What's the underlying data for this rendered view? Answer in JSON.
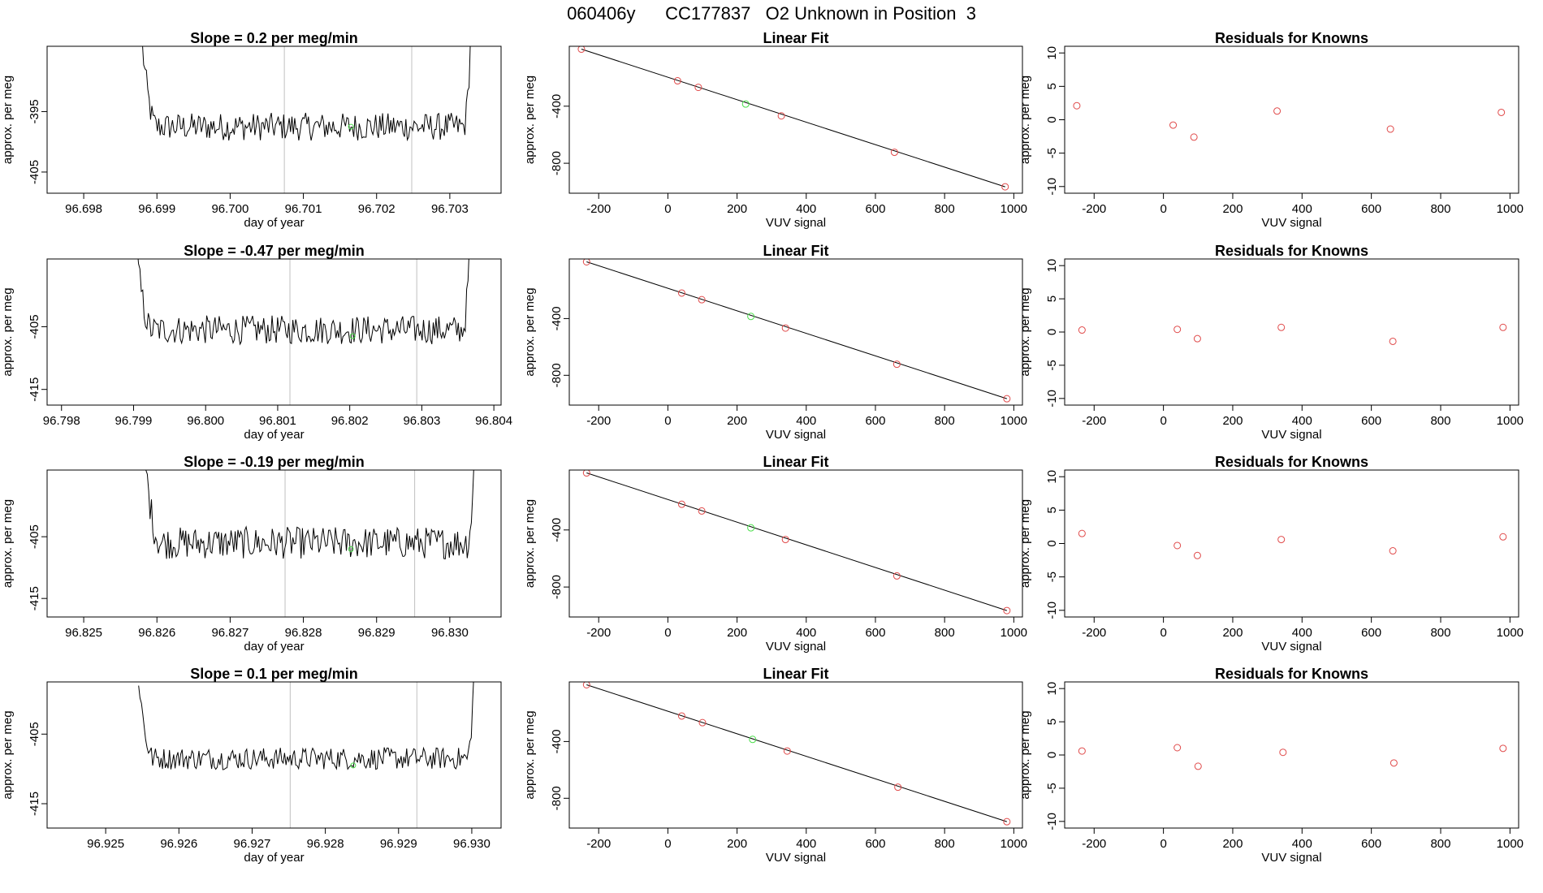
{
  "page": {
    "title": "060406y      CC177837   O2 Unknown in Position  3"
  },
  "colors": {
    "trace": "#000000",
    "vline": "#c0c0c0",
    "known": "#e04a4a",
    "unknown": "#4ade4a",
    "axis": "#000000"
  },
  "chart_data": [
    {
      "type": "line",
      "row": 0,
      "col": 0,
      "title": "Slope =  0.2  per meg/min",
      "xlabel": "day of year",
      "ylabel": "approx. per meg",
      "xlim": [
        96.6975,
        96.7037
      ],
      "ylim": [
        -408.5,
        -384.2
      ],
      "xticks": [
        "96.698",
        "96.699",
        "96.700",
        "96.701",
        "96.702",
        "96.703"
      ],
      "yticks": [
        "-395",
        "-405"
      ],
      "vlines": [
        96.70074,
        96.70248
      ],
      "trace_x_start": 96.6988,
      "trace_x_end": 96.7033,
      "trace_base": -397.5,
      "trace_noise": 2.3,
      "trace_left_y": -384.0,
      "trace_right_y": -384.0,
      "marker_x": 96.70165,
      "marker_y": -397.5
    },
    {
      "type": "scatter",
      "row": 0,
      "col": 1,
      "title": "Linear Fit",
      "xlabel": "VUV signal",
      "ylabel": "approx. per meg",
      "xlim": [
        -285,
        1025
      ],
      "ylim": [
        -1010,
        20
      ],
      "xticks": [
        "-200",
        "0",
        "200",
        "400",
        "600",
        "800",
        "1000"
      ],
      "yticks": [
        "-400",
        "-800"
      ],
      "fit_line": [
        [
          -250,
          0
        ],
        [
          975,
          -965
        ]
      ],
      "known_points": [
        [
          -250,
          0
        ],
        [
          28,
          -222
        ],
        [
          88,
          -268
        ],
        [
          328,
          -468
        ],
        [
          655,
          -723
        ],
        [
          975,
          -965
        ]
      ],
      "unknown_points": [
        [
          225,
          -385
        ]
      ]
    },
    {
      "type": "scatter",
      "row": 0,
      "col": 2,
      "title": "Residuals for Knowns",
      "xlabel": "VUV signal",
      "ylabel": "approx. per meg",
      "xlim": [
        -285,
        1025
      ],
      "ylim": [
        -11,
        11
      ],
      "xticks": [
        "-200",
        "0",
        "200",
        "400",
        "600",
        "800",
        "1000"
      ],
      "yticks": [
        "-10",
        "-5",
        "0",
        "5",
        "10"
      ],
      "known_points": [
        [
          -250,
          2.1
        ],
        [
          28,
          -0.8
        ],
        [
          88,
          -2.6
        ],
        [
          328,
          1.3
        ],
        [
          655,
          -1.4
        ],
        [
          975,
          1.1
        ]
      ]
    },
    {
      "type": "line",
      "row": 1,
      "col": 0,
      "title": "Slope =  -0.47  per meg/min",
      "xlabel": "day of year",
      "ylabel": "approx. per meg",
      "xlim": [
        96.7978,
        96.8041
      ],
      "ylim": [
        -417.5,
        -394.2
      ],
      "xticks": [
        "96.798",
        "96.799",
        "96.800",
        "96.801",
        "96.802",
        "96.803",
        "96.804"
      ],
      "yticks": [
        "-405",
        "-415"
      ],
      "vlines": [
        96.80117,
        96.80293
      ],
      "trace_x_start": 96.79905,
      "trace_x_end": 96.80368,
      "trace_base": -405.5,
      "trace_noise": 2.3,
      "trace_left_y": -394.0,
      "trace_right_y": -394.0,
      "marker_x": 96.80204,
      "marker_y": -406.5
    },
    {
      "type": "scatter",
      "row": 1,
      "col": 1,
      "title": "Linear Fit",
      "xlabel": "VUV signal",
      "ylabel": "approx. per meg",
      "xlim": [
        -285,
        1025
      ],
      "ylim": [
        -1010,
        20
      ],
      "xticks": [
        "-200",
        "0",
        "200",
        "400",
        "600",
        "800",
        "1000"
      ],
      "yticks": [
        "-400",
        "-800"
      ],
      "fit_line": [
        [
          -235,
          0
        ],
        [
          980,
          -965
        ]
      ],
      "known_points": [
        [
          -235,
          0
        ],
        [
          40,
          -220
        ],
        [
          98,
          -267
        ],
        [
          340,
          -467
        ],
        [
          662,
          -722
        ],
        [
          980,
          -965
        ]
      ],
      "unknown_points": [
        [
          240,
          -385
        ]
      ]
    },
    {
      "type": "scatter",
      "row": 1,
      "col": 2,
      "title": "Residuals for Knowns",
      "xlabel": "VUV signal",
      "ylabel": "approx. per meg",
      "xlim": [
        -285,
        1025
      ],
      "ylim": [
        -11,
        11
      ],
      "xticks": [
        "-200",
        "0",
        "200",
        "400",
        "600",
        "800",
        "1000"
      ],
      "yticks": [
        "-10",
        "-5",
        "0",
        "5",
        "10"
      ],
      "known_points": [
        [
          -235,
          0.3
        ],
        [
          40,
          0.4
        ],
        [
          98,
          -1.0
        ],
        [
          340,
          0.7
        ],
        [
          662,
          -1.4
        ],
        [
          980,
          0.7
        ]
      ]
    },
    {
      "type": "line",
      "row": 2,
      "col": 0,
      "title": "Slope =  -0.19  per meg/min",
      "xlabel": "day of year",
      "ylabel": "approx. per meg",
      "xlim": [
        96.8245,
        96.8307
      ],
      "ylim": [
        -418,
        -394.2
      ],
      "xticks": [
        "96.825",
        "96.826",
        "96.827",
        "96.828",
        "96.829",
        "96.830"
      ],
      "yticks": [
        "-405",
        "-415"
      ],
      "vlines": [
        96.82775,
        96.82952
      ],
      "trace_x_start": 96.82585,
      "trace_x_end": 96.83035,
      "trace_base": -406.0,
      "trace_noise": 2.6,
      "trace_left_y": -394.0,
      "trace_right_y": -394.0,
      "marker_x": 96.82865,
      "marker_y": -407.0
    },
    {
      "type": "scatter",
      "row": 2,
      "col": 1,
      "title": "Linear Fit",
      "xlabel": "VUV signal",
      "ylabel": "approx. per meg",
      "xlim": [
        -285,
        1025
      ],
      "ylim": [
        -1010,
        20
      ],
      "xticks": [
        "-200",
        "0",
        "200",
        "400",
        "600",
        "800",
        "1000"
      ],
      "yticks": [
        "-400",
        "-800"
      ],
      "fit_line": [
        [
          -235,
          0
        ],
        [
          980,
          -965
        ]
      ],
      "known_points": [
        [
          -235,
          0
        ],
        [
          40,
          -220
        ],
        [
          98,
          -267
        ],
        [
          340,
          -467
        ],
        [
          662,
          -722
        ],
        [
          980,
          -965
        ]
      ],
      "unknown_points": [
        [
          240,
          -385
        ]
      ]
    },
    {
      "type": "scatter",
      "row": 2,
      "col": 2,
      "title": "Residuals for Knowns",
      "xlabel": "VUV signal",
      "ylabel": "approx. per meg",
      "xlim": [
        -285,
        1025
      ],
      "ylim": [
        -11,
        11
      ],
      "xticks": [
        "-200",
        "0",
        "200",
        "400",
        "600",
        "800",
        "1000"
      ],
      "yticks": [
        "-10",
        "-5",
        "0",
        "5",
        "10"
      ],
      "known_points": [
        [
          -235,
          1.5
        ],
        [
          40,
          -0.3
        ],
        [
          98,
          -1.8
        ],
        [
          340,
          0.6
        ],
        [
          662,
          -1.1
        ],
        [
          980,
          1.0
        ]
      ]
    },
    {
      "type": "line",
      "row": 3,
      "col": 0,
      "title": "Slope =  0.1  per meg/min",
      "xlabel": "day of year",
      "ylabel": "approx. per meg",
      "xlim": [
        96.9242,
        96.9304
      ],
      "ylim": [
        -418.5,
        -397.5
      ],
      "xticks": [
        "96.925",
        "96.926",
        "96.927",
        "96.928",
        "96.929",
        "96.930"
      ],
      "yticks": [
        "-405",
        "-415"
      ],
      "vlines": [
        96.92752,
        96.92925
      ],
      "trace_x_start": 96.92545,
      "trace_x_end": 96.93005,
      "trace_base": -408.5,
      "trace_noise": 1.6,
      "trace_left_y": -397.0,
      "trace_right_y": -397.0,
      "marker_x": 96.92838,
      "marker_y": -409.5
    },
    {
      "type": "scatter",
      "row": 3,
      "col": 1,
      "title": "Linear Fit",
      "xlabel": "VUV signal",
      "ylabel": "approx. per meg",
      "xlim": [
        -285,
        1025
      ],
      "ylim": [
        -1010,
        20
      ],
      "xticks": [
        "-200",
        "0",
        "200",
        "400",
        "600",
        "800",
        "1000"
      ],
      "yticks": [
        "-400",
        "-800"
      ],
      "fit_line": [
        [
          -235,
          0
        ],
        [
          980,
          -965
        ]
      ],
      "known_points": [
        [
          -235,
          0
        ],
        [
          40,
          -220
        ],
        [
          100,
          -267
        ],
        [
          345,
          -467
        ],
        [
          665,
          -722
        ],
        [
          980,
          -965
        ]
      ],
      "unknown_points": [
        [
          245,
          -385
        ]
      ]
    },
    {
      "type": "scatter",
      "row": 3,
      "col": 2,
      "title": "Residuals for Knowns",
      "xlabel": "VUV signal",
      "ylabel": "approx. per meg",
      "xlim": [
        -285,
        1025
      ],
      "ylim": [
        -11,
        11
      ],
      "xticks": [
        "-200",
        "0",
        "200",
        "400",
        "600",
        "800",
        "1000"
      ],
      "yticks": [
        "-10",
        "-5",
        "0",
        "5",
        "10"
      ],
      "known_points": [
        [
          -235,
          0.6
        ],
        [
          40,
          1.1
        ],
        [
          100,
          -1.7
        ],
        [
          345,
          0.4
        ],
        [
          665,
          -1.2
        ],
        [
          980,
          1.0
        ]
      ]
    }
  ]
}
